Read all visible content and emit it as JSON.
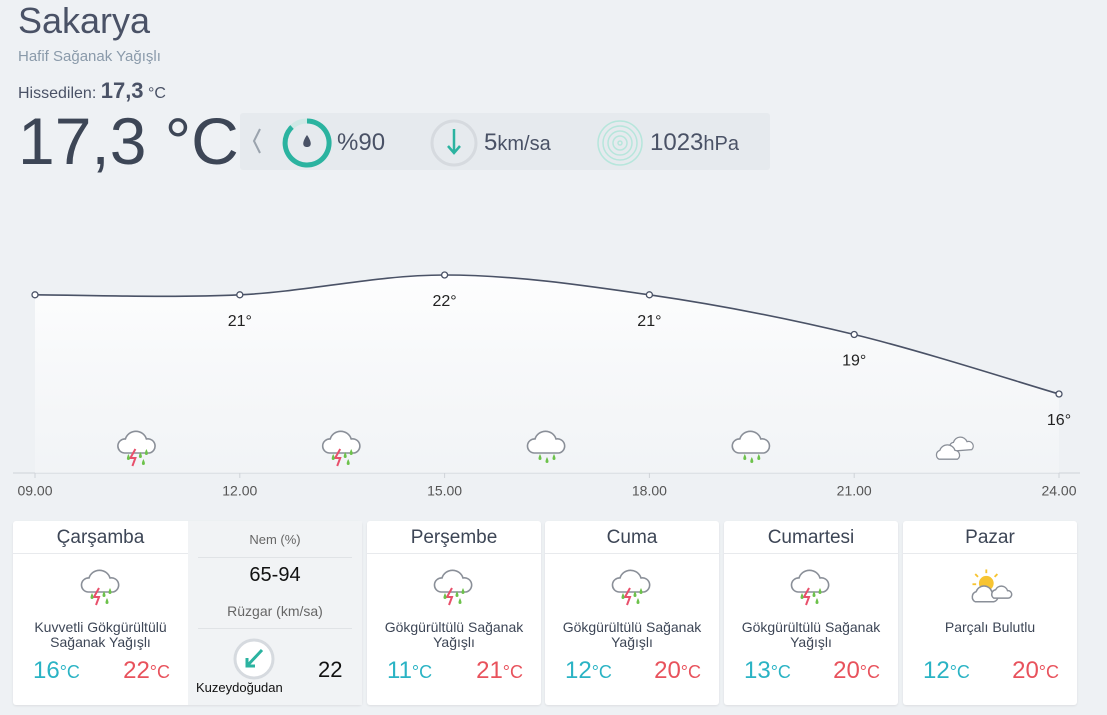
{
  "header": {
    "city": "Sakarya",
    "condition": "Hafif Sağanak Yağışlı",
    "feels_label": "Hissedilen:",
    "feels_value": "17,3",
    "unit": "°C",
    "temperature": "17,3 °C"
  },
  "stats": {
    "humidity": "%90",
    "wind_value": "5",
    "wind_unit": "km/sa",
    "pressure_value": "1023",
    "pressure_unit": "hPa"
  },
  "chart_data": {
    "type": "line",
    "categories": [
      "09.00",
      "12.00",
      "15.00",
      "18.00",
      "21.00",
      "24.00"
    ],
    "values": [
      21,
      21,
      22,
      21,
      19,
      16
    ],
    "value_labels": [
      null,
      "21°",
      "22°",
      "21°",
      "19°",
      "16°"
    ],
    "color": "#4a5266"
  },
  "forecast": {
    "temp_unit": "°C",
    "days": [
      {
        "day": "Çarşamba",
        "condition": "Kuvvetli Gökgürültülü Sağanak Yağışlı",
        "low": 16,
        "high": 22
      },
      {
        "day": "Perşembe",
        "condition": "Gökgürültülü Sağanak Yağışlı",
        "low": 11,
        "high": 21
      },
      {
        "day": "Cuma",
        "condition": "Gökgürültülü Sağanak Yağışlı",
        "low": 12,
        "high": 20
      },
      {
        "day": "Cumartesi",
        "condition": "Gökgürültülü Sağanak Yağışlı",
        "low": 13,
        "high": 20
      },
      {
        "day": "Pazar",
        "condition": "Parçalı Bulutlu",
        "low": 12,
        "high": 20
      }
    ]
  },
  "details": {
    "humidity_label": "Nem (%)",
    "humidity_value": "65-94",
    "wind_label": "Rüzgar (km/sa)",
    "wind_direction": "Kuzeydoğudan",
    "wind_value": "22"
  }
}
